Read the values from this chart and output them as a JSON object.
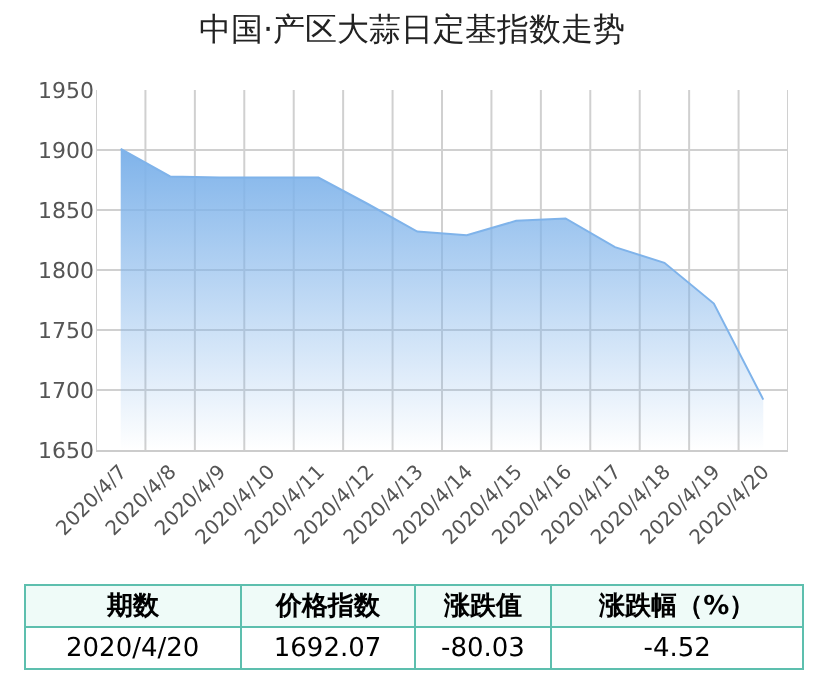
{
  "chart_data": {
    "type": "area",
    "title": "中国·产区大蒜日定基指数走势",
    "categories": [
      "2020/4/7",
      "2020/4/8",
      "2020/4/9",
      "2020/4/10",
      "2020/4/11",
      "2020/4/12",
      "2020/4/13",
      "2020/4/14",
      "2020/4/15",
      "2020/4/16",
      "2020/4/17",
      "2020/4/18",
      "2020/4/19",
      "2020/4/20"
    ],
    "values": [
      1901,
      1878,
      1877,
      1877,
      1877,
      1855,
      1832,
      1829,
      1841,
      1843,
      1819,
      1806,
      1772,
      1692
    ],
    "color": "#7fb3ea",
    "ylim": [
      1650,
      1950
    ],
    "yticks": [
      1650,
      1700,
      1750,
      1800,
      1850,
      1900,
      1950
    ],
    "grid": true,
    "annotations": [
      "期数",
      "价格指数",
      "涨跌值",
      "涨跌幅（%）",
      "2020/4/20",
      "1692.07",
      "-80.03",
      "-4.52"
    ]
  }
}
